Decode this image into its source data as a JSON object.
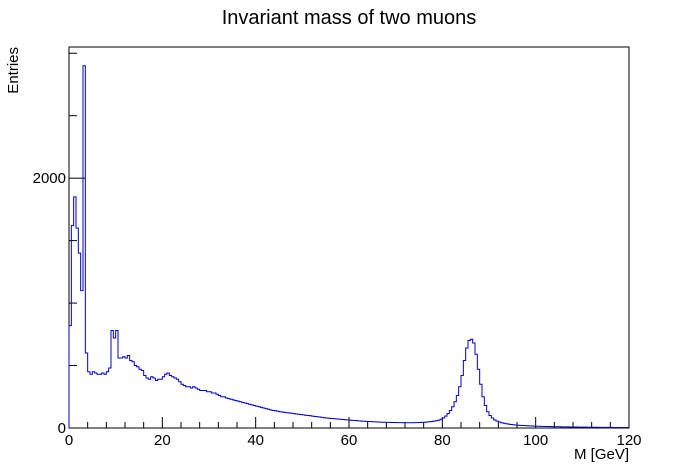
{
  "chart_data": {
    "type": "histogram",
    "title": "Invariant mass of two muons",
    "xlabel": "M [GeV]",
    "ylabel": "Entries",
    "xlim": [
      0,
      120
    ],
    "ylim": [
      0,
      3050
    ],
    "x_ticks": [
      0,
      20,
      40,
      60,
      80,
      100,
      120
    ],
    "y_ticks": [
      0,
      2000
    ],
    "grid": false,
    "legend": "none",
    "line_color": "#0000cc",
    "bin_width": 0.5,
    "bin_start": 0,
    "values": [
      820,
      1620,
      1850,
      1600,
      1400,
      1100,
      2900,
      600,
      450,
      430,
      450,
      440,
      430,
      430,
      440,
      430,
      450,
      480,
      780,
      720,
      780,
      560,
      560,
      570,
      560,
      580,
      540,
      530,
      500,
      490,
      470,
      460,
      420,
      400,
      390,
      410,
      400,
      380,
      390,
      390,
      410,
      430,
      440,
      420,
      410,
      400,
      390,
      370,
      350,
      340,
      330,
      330,
      320,
      330,
      320,
      310,
      300,
      300,
      300,
      290,
      290,
      280,
      280,
      270,
      260,
      250,
      250,
      240,
      235,
      230,
      225,
      220,
      215,
      210,
      205,
      200,
      195,
      190,
      185,
      180,
      175,
      170,
      165,
      160,
      155,
      150,
      145,
      140,
      138,
      135,
      130,
      128,
      125,
      122,
      120,
      118,
      115,
      112,
      110,
      108,
      105,
      102,
      100,
      98,
      95,
      92,
      90,
      88,
      85,
      82,
      80,
      78,
      76,
      75,
      73,
      71,
      70,
      68,
      66,
      65,
      63,
      61,
      60,
      58,
      57,
      55,
      54,
      53,
      52,
      51,
      50,
      49,
      48,
      47,
      46,
      46,
      45,
      45,
      44,
      44,
      43,
      43,
      43,
      42,
      42,
      42,
      42,
      42,
      43,
      43,
      44,
      45,
      46,
      48,
      50,
      52,
      55,
      58,
      62,
      70,
      80,
      95,
      115,
      140,
      170,
      210,
      260,
      330,
      420,
      540,
      640,
      700,
      710,
      680,
      590,
      470,
      350,
      250,
      180,
      130,
      100,
      80,
      65,
      55,
      48,
      42,
      38,
      34,
      31,
      28,
      26,
      24,
      22,
      21,
      20,
      19,
      18,
      17,
      16,
      15,
      14,
      14,
      13,
      13,
      12,
      12,
      11,
      11,
      10,
      10,
      10,
      9,
      9,
      9,
      8,
      8,
      8,
      8,
      7,
      7,
      7,
      7,
      6,
      6,
      6,
      6,
      6,
      5,
      5,
      5,
      5,
      5,
      5,
      4,
      4,
      4,
      4,
      4,
      4,
      4
    ]
  }
}
